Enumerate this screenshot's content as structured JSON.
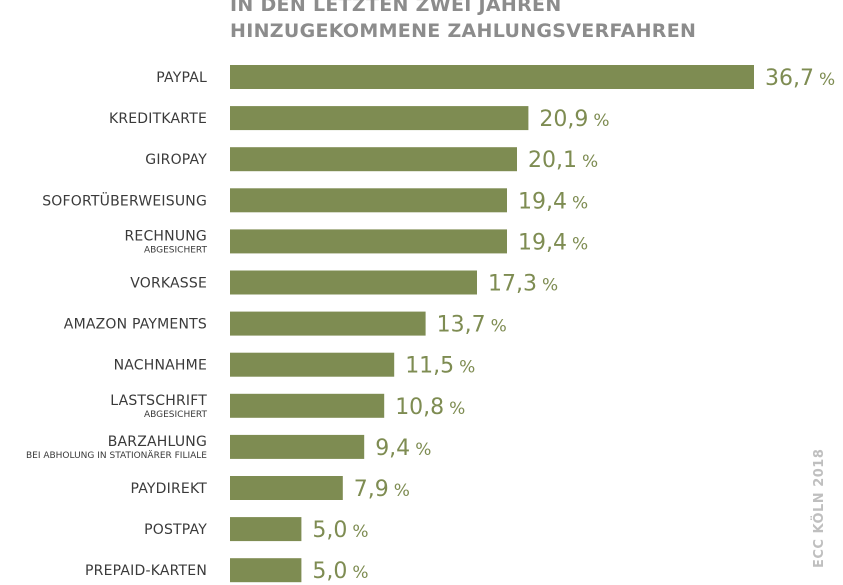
{
  "colors": {
    "bar": "#7e8c52",
    "value_text": "#7e8c52",
    "label_text": "#3a3a3a",
    "title_text": "#8c8c8c",
    "source_text": "#bfbfbf"
  },
  "source": "ECC KÖLN 2018",
  "chart_data": {
    "type": "bar",
    "orientation": "horizontal",
    "title_lines": [
      "IN DEN LETZTEN ZWEI JAHREN",
      "HINZUGEKOMMENE ZAHLUNGSVERFAHREN"
    ],
    "unit": "%",
    "xlim": [
      0,
      36.7
    ],
    "grid": false,
    "legend": "none",
    "categories": [
      {
        "label": "PAYPAL",
        "sublabel": "",
        "value": 36.7,
        "value_text": "36,7"
      },
      {
        "label": "KREDITKARTE",
        "sublabel": "",
        "value": 20.9,
        "value_text": "20,9"
      },
      {
        "label": "GIROPAY",
        "sublabel": "",
        "value": 20.1,
        "value_text": "20,1"
      },
      {
        "label": "SOFORTÜBERWEISUNG",
        "sublabel": "",
        "value": 19.4,
        "value_text": "19,4"
      },
      {
        "label": "RECHNUNG",
        "sublabel": "ABGESICHERT",
        "value": 19.4,
        "value_text": "19,4"
      },
      {
        "label": "VORKASSE",
        "sublabel": "",
        "value": 17.3,
        "value_text": "17,3"
      },
      {
        "label": "AMAZON PAYMENTS",
        "sublabel": "",
        "value": 13.7,
        "value_text": "13,7"
      },
      {
        "label": "NACHNAHME",
        "sublabel": "",
        "value": 11.5,
        "value_text": "11,5"
      },
      {
        "label": "LASTSCHRIFT",
        "sublabel": "ABGESICHERT",
        "value": 10.8,
        "value_text": "10,8"
      },
      {
        "label": "BARZAHLUNG",
        "sublabel": "BEI ABHOLUNG IN STATIONÄRER FILIALE",
        "value": 9.4,
        "value_text": "9,4"
      },
      {
        "label": "PAYDIREKT",
        "sublabel": "",
        "value": 7.9,
        "value_text": "7,9"
      },
      {
        "label": "POSTPAY",
        "sublabel": "",
        "value": 5.0,
        "value_text": "5,0"
      },
      {
        "label": "PREPAID-KARTEN",
        "sublabel": "",
        "value": 5.0,
        "value_text": "5,0"
      }
    ]
  }
}
